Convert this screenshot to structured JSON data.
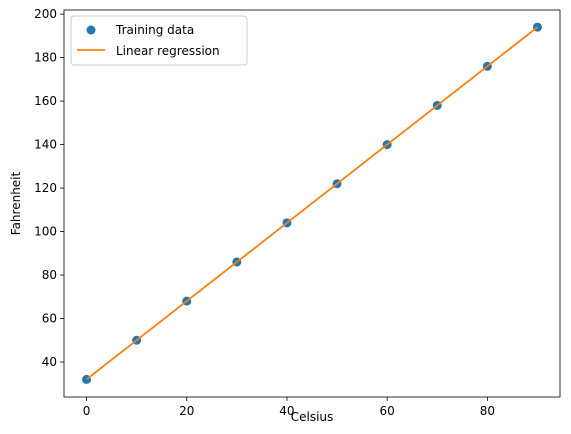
{
  "chart_data": {
    "type": "scatter",
    "xlabel": "Celsius",
    "ylabel": "Fahrenheit",
    "xlim": [
      -4.5,
      94.5
    ],
    "ylim": [
      23.9,
      201.9
    ],
    "xticks": [
      0,
      20,
      40,
      60,
      80
    ],
    "yticks": [
      40,
      60,
      80,
      100,
      120,
      140,
      160,
      180,
      200
    ],
    "grid": false,
    "legend_position": "top-left",
    "series": [
      {
        "name": "Training data",
        "kind": "scatter",
        "color": "#1f77b4",
        "x": [
          0,
          10,
          20,
          30,
          40,
          50,
          60,
          70,
          80,
          90
        ],
        "y": [
          32,
          50,
          68,
          86,
          104,
          122,
          140,
          158,
          176,
          194
        ]
      },
      {
        "name": "Linear regression",
        "kind": "line",
        "color": "#ff7f0e",
        "x": [
          0,
          90
        ],
        "y": [
          32,
          194
        ]
      }
    ]
  }
}
